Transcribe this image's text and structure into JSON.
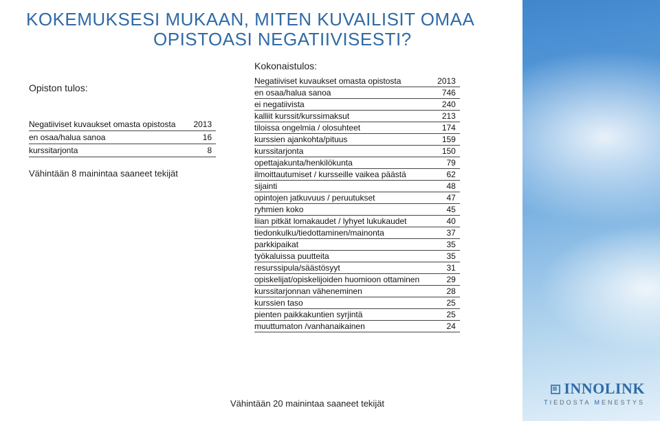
{
  "colors": {
    "heading": "#2f6aa6",
    "text": "#222222",
    "table_rule": "#444444",
    "page_bg": "#ffffff",
    "sky_gradient": [
      "#2d6fb7",
      "#4a8fd3",
      "#6ba8de",
      "#b3d5ee",
      "#e3f0fa"
    ]
  },
  "title_line1": "KOKEMUKSESI MUKAAN, MITEN KUVAILISIT OMAA",
  "title_line2": "OPISTOASI NEGATIIVISESTI?",
  "left": {
    "heading": "Opiston tulos:",
    "table": {
      "type": "table",
      "columns": [
        "tekijä",
        "2013"
      ],
      "rows": [
        [
          "Negatiiviset kuvaukset omasta opistosta",
          "2013"
        ],
        [
          "en osaa/halua sanoa",
          "16"
        ],
        [
          "kurssitarjonta",
          "8"
        ]
      ],
      "font_size": 12,
      "rule_color": "#444444"
    },
    "caption": "Vähintään 8 mainintaa saaneet tekijät"
  },
  "right": {
    "heading": "Kokonaistulos:",
    "table": {
      "type": "table",
      "columns": [
        "tekijä",
        "2013"
      ],
      "rows": [
        [
          "Negatiiviset kuvaukset omasta opistosta",
          "2013"
        ],
        [
          "en osaa/halua sanoa",
          "746"
        ],
        [
          "ei negatiivista",
          "240"
        ],
        [
          "kalliit kurssit/kurssimaksut",
          "213"
        ],
        [
          "tiloissa ongelmia / olosuhteet",
          "174"
        ],
        [
          "kurssien ajankohta/pituus",
          "159"
        ],
        [
          "kurssitarjonta",
          "150"
        ],
        [
          "opettajakunta/henkilökunta",
          "79"
        ],
        [
          "ilmoittautumiset / kursseille vaikea päästä",
          "62"
        ],
        [
          "sijainti",
          "48"
        ],
        [
          "opintojen jatkuvuus / peruutukset",
          "47"
        ],
        [
          "ryhmien koko",
          "45"
        ],
        [
          "liian pitkät lomakaudet / lyhyet lukukaudet",
          "40"
        ],
        [
          "tiedonkulku/tiedottaminen/mainonta",
          "37"
        ],
        [
          "parkkipaikat",
          "35"
        ],
        [
          "työkaluissa puutteita",
          "35"
        ],
        [
          "resurssipula/säästösyyt",
          "31"
        ],
        [
          "opiskelijat/opiskelijoiden huomioon ottaminen",
          "29"
        ],
        [
          "kurssitarjonnan väheneminen",
          "28"
        ],
        [
          "kurssien taso",
          "25"
        ],
        [
          "pienten paikkakuntien syrjintä",
          "25"
        ],
        [
          "muuttumaton /vanhanaikainen",
          "24"
        ]
      ],
      "font_size": 12,
      "rule_color": "#444444"
    }
  },
  "footer_caption": "Vähintään 20 mainintaa saaneet tekijät",
  "logo": {
    "brand": "INNOLINK",
    "tagline_parts": [
      "T",
      "IEDOSTA ",
      "M",
      "ENESTYS"
    ]
  }
}
